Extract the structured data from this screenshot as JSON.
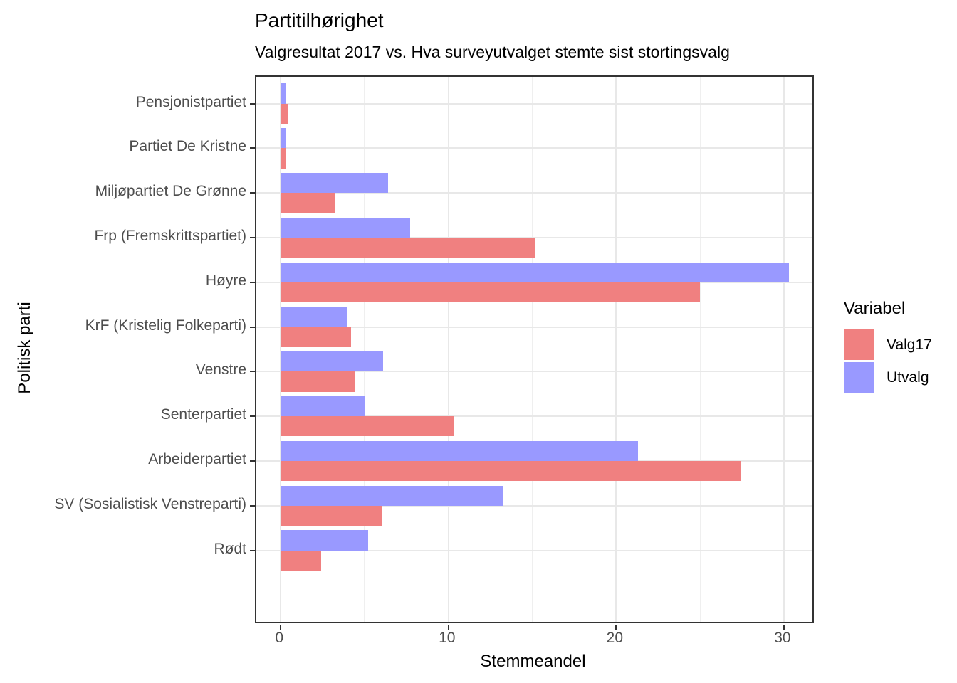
{
  "title": "Partitilhørighet",
  "subtitle": "Valgresultat 2017 vs. Hva surveyutvalget stemte sist stortingsvalg",
  "axes": {
    "x_title": "Stemmeandel",
    "y_title": "Politisk parti"
  },
  "legend": {
    "title": "Variabel",
    "items": [
      {
        "label": "Valg17",
        "color": "#F08080"
      },
      {
        "label": "Utvalg",
        "color": "#9999FF"
      }
    ]
  },
  "colors": {
    "valg17_bar": "#F08080",
    "utvalg_bar": "#9999FF",
    "panel_border": "#333333",
    "grid_major": "#e8e8e8",
    "grid_minor": "#efefef",
    "tick_label": "#4d4d4d"
  },
  "chart_data": {
    "type": "bar",
    "orientation": "horizontal",
    "title": "Partitilhørighet",
    "subtitle": "Valgresultat 2017 vs. Hva surveyutvalget stemte sist stortingsvalg",
    "xlabel": "Stemmeandel",
    "ylabel": "Politisk parti",
    "categories": [
      "Pensjonistpartiet",
      "Partiet De Kristne",
      "Miljøpartiet De Grønne",
      "Frp (Fremskrittspartiet)",
      "Høyre",
      "KrF (Kristelig Folkeparti)",
      "Venstre",
      "Senterpartiet",
      "Arbeiderpartiet",
      "SV (Sosialistisk Venstreparti)",
      "Rødt"
    ],
    "series": [
      {
        "name": "Valg17",
        "color": "#F08080",
        "values": [
          0.4,
          0.3,
          3.2,
          15.2,
          25.0,
          4.2,
          4.4,
          10.3,
          27.4,
          6.0,
          2.4
        ]
      },
      {
        "name": "Utvalg",
        "color": "#9999FF",
        "values": [
          0.3,
          0.3,
          6.4,
          7.7,
          30.3,
          4.0,
          6.1,
          5.0,
          21.3,
          13.3,
          5.2
        ]
      }
    ],
    "group_order_top_to_bottom": [
      "Utvalg",
      "Valg17"
    ],
    "x_ticks": [
      0,
      10,
      20,
      30
    ],
    "x_minor_ticks": [
      5,
      15,
      25
    ],
    "xlim": [
      -1.45,
      31.7
    ],
    "grid": true,
    "legend_title": "Variabel",
    "legend_position": "right"
  }
}
